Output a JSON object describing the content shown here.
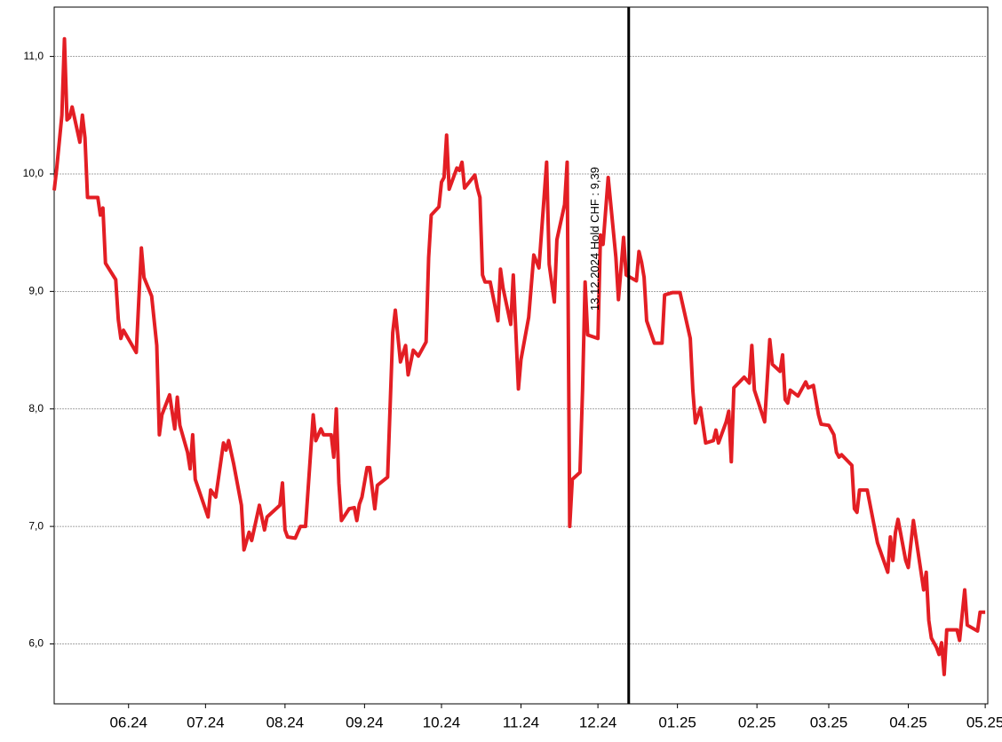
{
  "chart_data": {
    "type": "line",
    "x": [
      0,
      1,
      3,
      4,
      5,
      6,
      7,
      10,
      11,
      12,
      13,
      17,
      18,
      19,
      20,
      24,
      25,
      26,
      27,
      32,
      33,
      34,
      35,
      38,
      40,
      41,
      42,
      45,
      47,
      48,
      49,
      52,
      53,
      54,
      55,
      60,
      61,
      63,
      66,
      67,
      68,
      70,
      73,
      74,
      76,
      77,
      80,
      82,
      83,
      88,
      89,
      90,
      91,
      94,
      96,
      98,
      101,
      102,
      104,
      105,
      108,
      109,
      110,
      111,
      112,
      115,
      117,
      118,
      119,
      120,
      122,
      123,
      125,
      126,
      130,
      132,
      133,
      135,
      137,
      138,
      140,
      142,
      145,
      146,
      147,
      150,
      151,
      152,
      153,
      154,
      157,
      158,
      159,
      160,
      164,
      165,
      166,
      167,
      168,
      170,
      173,
      174,
      175,
      178,
      179,
      181,
      182,
      185,
      187,
      189,
      192,
      193,
      195,
      196,
      199,
      200,
      201,
      202,
      205,
      206,
      207,
      208,
      212,
      213,
      214,
      216,
      219,
      220,
      222,
      223,
      227,
      228,
      229,
      230,
      231,
      234,
      237,
      238,
      241,
      244,
      248,
      249,
      250,
      252,
      254,
      257,
      258,
      259,
      262,
      263,
      264,
      265,
      269,
      271,
      272,
      273,
      277,
      279,
      280,
      283,
      284,
      285,
      286,
      287,
      290,
      293,
      294,
      296,
      298,
      299,
      302,
      304,
      305,
      306,
      307,
      311,
      312,
      313,
      314,
      317,
      321,
      325,
      326,
      327,
      328,
      329,
      332,
      333,
      335,
      339,
      340,
      341,
      342,
      344,
      345,
      346,
      347,
      348,
      352,
      353,
      355,
      356,
      360,
      361,
      363
    ],
    "series": [
      {
        "color": "#e31e24",
        "values": [
          9.86,
          10.05,
          10.5,
          11.15,
          10.46,
          10.48,
          10.57,
          10.27,
          10.5,
          10.31,
          9.8,
          9.8,
          9.65,
          9.71,
          9.24,
          9.1,
          8.76,
          8.6,
          8.67,
          8.48,
          8.93,
          9.37,
          9.12,
          8.96,
          8.54,
          7.78,
          7.95,
          8.12,
          7.83,
          8.1,
          7.86,
          7.63,
          7.49,
          7.78,
          7.4,
          7.08,
          7.31,
          7.25,
          7.71,
          7.65,
          7.73,
          7.53,
          7.18,
          6.8,
          6.95,
          6.88,
          7.18,
          6.97,
          7.08,
          7.18,
          7.37,
          6.97,
          6.91,
          6.9,
          7.0,
          7.0,
          7.95,
          7.73,
          7.83,
          7.78,
          7.78,
          7.59,
          8.0,
          7.37,
          7.05,
          7.15,
          7.16,
          7.05,
          7.19,
          7.25,
          7.5,
          7.5,
          7.15,
          7.35,
          7.42,
          8.65,
          8.84,
          8.4,
          8.54,
          8.29,
          8.5,
          8.45,
          8.57,
          9.29,
          9.65,
          9.72,
          9.93,
          9.97,
          10.33,
          9.87,
          10.05,
          10.03,
          10.1,
          9.88,
          9.99,
          9.88,
          9.8,
          9.14,
          9.08,
          9.08,
          8.75,
          9.19,
          9.03,
          8.72,
          9.14,
          8.17,
          8.42,
          8.78,
          9.31,
          9.2,
          10.1,
          9.23,
          8.91,
          9.44,
          9.74,
          10.1,
          7.0,
          7.4,
          7.46,
          8.16,
          9.08,
          8.63,
          8.6,
          9.48,
          9.4,
          9.97,
          9.29,
          8.93,
          9.46,
          9.14,
          9.09,
          9.34,
          9.25,
          9.12,
          8.75,
          8.56,
          8.56,
          8.97,
          8.99,
          8.99,
          8.6,
          8.16,
          7.88,
          8.01,
          7.71,
          7.73,
          7.82,
          7.71,
          7.89,
          7.98,
          7.55,
          8.18,
          8.27,
          8.22,
          8.54,
          8.16,
          7.89,
          8.59,
          8.38,
          8.32,
          8.46,
          8.08,
          8.05,
          8.16,
          8.11,
          8.23,
          8.18,
          8.2,
          7.95,
          7.87,
          7.86,
          7.78,
          7.63,
          7.59,
          7.61,
          7.52,
          7.15,
          7.12,
          7.31,
          7.31,
          6.86,
          6.61,
          6.91,
          6.71,
          6.95,
          7.06,
          6.71,
          6.65,
          7.05,
          6.46,
          6.61,
          6.2,
          6.05,
          5.97,
          5.91,
          6.01,
          5.74,
          6.12,
          6.12,
          6.03,
          6.46,
          6.16,
          6.11,
          6.27,
          6.27
        ]
      }
    ],
    "xlim": [
      0,
      364
    ],
    "xticks": [
      {
        "value": 29,
        "label": "06.24"
      },
      {
        "value": 59,
        "label": "07.24"
      },
      {
        "value": 90,
        "label": "08.24"
      },
      {
        "value": 121,
        "label": "09.24"
      },
      {
        "value": 151,
        "label": "10.24"
      },
      {
        "value": 182,
        "label": "11.24"
      },
      {
        "value": 212,
        "label": "12.24"
      },
      {
        "value": 243,
        "label": "01.25"
      },
      {
        "value": 274,
        "label": "02.25"
      },
      {
        "value": 302,
        "label": "03.25"
      },
      {
        "value": 333,
        "label": "04.25"
      },
      {
        "value": 363,
        "label": "05.25"
      }
    ],
    "ylim": [
      5.49,
      11.42
    ],
    "yticks": [
      {
        "value": 6,
        "label": "6,0"
      },
      {
        "value": 7,
        "label": "7,0"
      },
      {
        "value": 8,
        "label": "8,0"
      },
      {
        "value": 9,
        "label": "9,0"
      },
      {
        "value": 10,
        "label": "10,0"
      },
      {
        "value": 11,
        "label": "11,0"
      }
    ],
    "grid": true,
    "annotations": [
      {
        "x": 224,
        "label": "13.12.2024 Hold CHF : 9,39",
        "color": "#000000"
      }
    ]
  }
}
